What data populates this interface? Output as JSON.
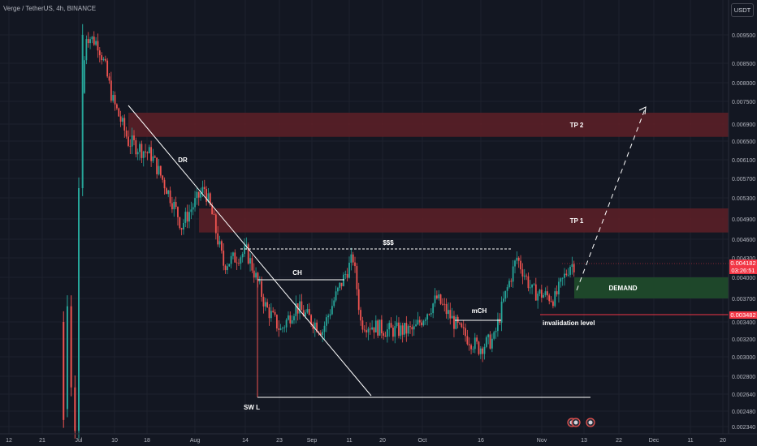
{
  "header": {
    "symbol": "Verge / TetherUS, 4h, BINANCE",
    "currency": "USDT"
  },
  "price_tags": {
    "current": "0.004182",
    "countdown": "03:26:51",
    "invalidation": "0.003482"
  },
  "colors": {
    "background": "#131722",
    "bull_candle": "#26a69a",
    "bear_candle": "#ef5350",
    "tp_zone": "#5a1f27",
    "demand_zone": "#1f4a2b",
    "price_tag": "#f23645",
    "line": "#ffffff"
  },
  "chart_data": {
    "type": "candlestick",
    "title": "",
    "y_axis_ticks": [
      "0.009500",
      "0.008500",
      "0.008000",
      "0.007500",
      "0.006900",
      "0.006500",
      "0.006100",
      "0.005700",
      "0.005300",
      "0.004900",
      "0.004600",
      "0.004300",
      "0.004000",
      "0.003700",
      "0.003400",
      "0.003200",
      "0.003000",
      "0.002800",
      "0.002640",
      "0.002480",
      "0.002340"
    ],
    "x_axis_ticks": [
      "12",
      "21",
      "Jul",
      "10",
      "18",
      "Aug",
      "14",
      "23",
      "Sep",
      "11",
      "20",
      "Oct",
      "16",
      "Nov",
      "13",
      "22",
      "Dec",
      "11",
      "20"
    ],
    "price_path": [
      [
        "Jun 29",
        0.0024
      ],
      [
        "Jul 3",
        0.0095
      ],
      [
        "Jul 6",
        0.0092
      ],
      [
        "Jul 10",
        0.0075
      ],
      [
        "Jul 14",
        0.0065
      ],
      [
        "Jul 20",
        0.0062
      ],
      [
        "Jul 28",
        0.0048
      ],
      [
        "Aug 3",
        0.0055
      ],
      [
        "Aug 8",
        0.0042
      ],
      [
        "Aug 14",
        0.0044
      ],
      [
        "Aug 19",
        0.0036
      ],
      [
        "Aug 23",
        0.0033
      ],
      [
        "Aug 27",
        0.0036
      ],
      [
        "Sep 3",
        0.0033
      ],
      [
        "Sep 11",
        0.0043
      ],
      [
        "Sep 13",
        0.0034
      ],
      [
        "Sep 20",
        0.0033
      ],
      [
        "Sep 27",
        0.0033
      ],
      [
        "Oct 3",
        0.0037
      ],
      [
        "Oct 9",
        0.0033
      ],
      [
        "Oct 14",
        0.0031
      ],
      [
        "Oct 18",
        0.0032
      ],
      [
        "Oct 24",
        0.0043
      ],
      [
        "Oct 28",
        0.0038
      ],
      [
        "Nov 3",
        0.0037
      ],
      [
        "Nov 7",
        0.0042
      ]
    ],
    "annotations": {
      "dr": "DR",
      "ch": "CH",
      "mch": "mCH",
      "liquidity": "$$$",
      "swing_low": "SW L",
      "invalidation": "invalidation level"
    },
    "zones": [
      {
        "label": "TP 2",
        "low": 0.0066,
        "high": 0.0072
      },
      {
        "label": "TP 1",
        "low": 0.0047,
        "high": 0.0051
      },
      {
        "label": "DEMAND",
        "low": 0.0037,
        "high": 0.004
      }
    ],
    "levels": {
      "current_price": 0.004182,
      "invalidation": 0.003482
    },
    "grid": true
  }
}
